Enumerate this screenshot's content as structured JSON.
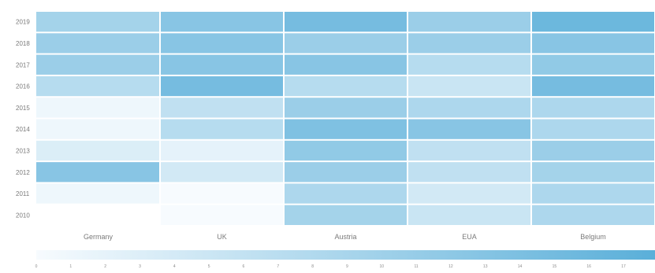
{
  "chart_data": {
    "type": "heatmap",
    "title": "",
    "xlabel": "",
    "ylabel": "",
    "columns": [
      "Germany",
      "UK",
      "Austria",
      "EUA",
      "Belgium"
    ],
    "rows": [
      "2019",
      "2018",
      "2017",
      "2016",
      "2015",
      "2014",
      "2013",
      "2012",
      "2011",
      "2010"
    ],
    "values": [
      [
        9,
        12,
        14,
        10,
        15
      ],
      [
        10,
        12,
        10,
        10,
        12
      ],
      [
        10,
        12,
        12,
        7,
        11
      ],
      [
        7,
        14,
        7,
        5,
        14
      ],
      [
        1,
        6,
        10,
        8,
        8
      ],
      [
        1,
        7,
        13,
        12,
        8
      ],
      [
        3,
        2,
        11,
        6,
        10
      ],
      [
        12,
        4,
        10,
        6,
        9
      ],
      [
        1,
        0,
        8,
        4,
        8
      ],
      [
        null,
        0,
        9,
        5,
        8
      ]
    ],
    "color_scale": {
      "min": 0,
      "max": 17,
      "ticks": [
        "0",
        "1",
        "2",
        "3",
        "4",
        "5",
        "6",
        "7",
        "8",
        "9",
        "10",
        "11",
        "12",
        "13",
        "14",
        "15",
        "16",
        "17"
      ],
      "low_color": "#f7fbfe",
      "high_color": "#5aafd9"
    },
    "grid": false,
    "legend_placement": "bottom"
  }
}
